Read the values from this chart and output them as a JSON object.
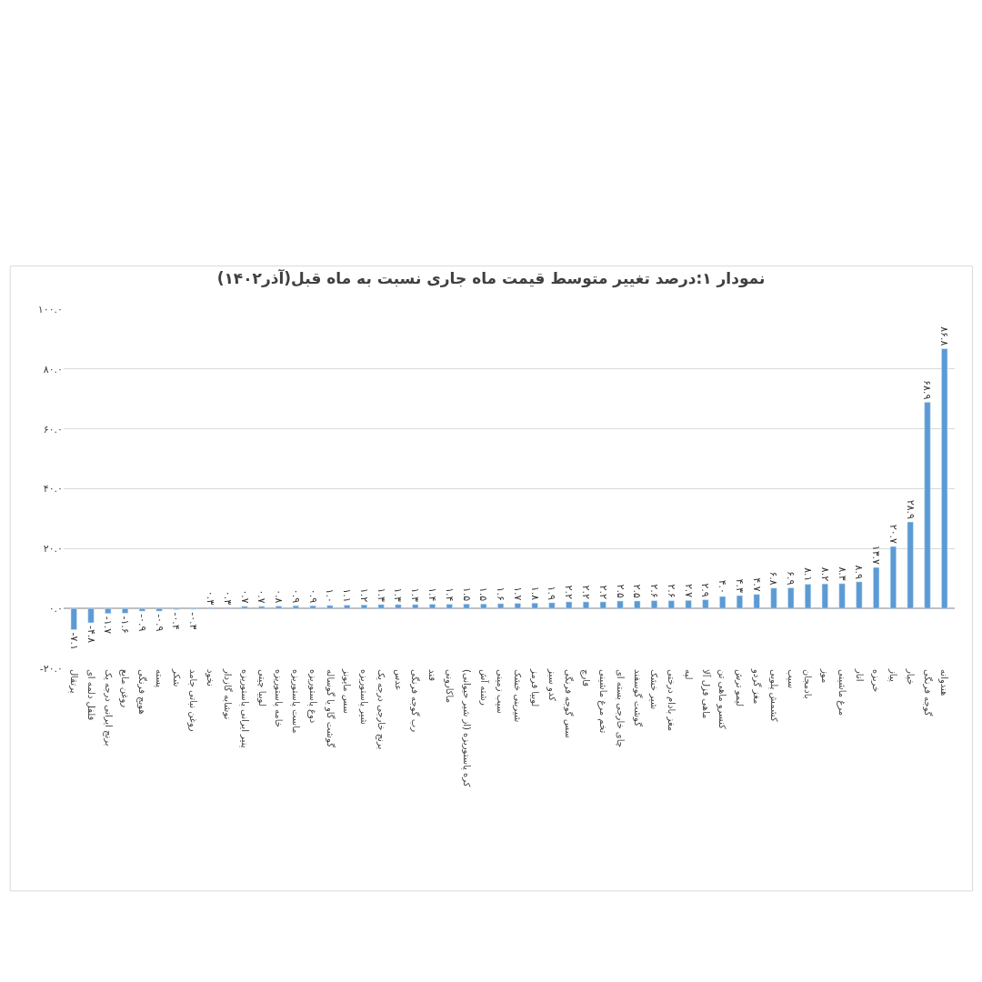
{
  "chart_data": {
    "type": "bar",
    "title": "نمودار ۱:درصد تغییر متوسط قیمت ماه جاری نسبت به ماه قبل(آذر۱۴۰۲)",
    "categories": [
      "پرتقال",
      "فلفل دلمه ای",
      "برنج ایرانی درجه یک",
      "روغن مایع",
      "هویج فرنگی",
      "پسته",
      "شکر",
      "روغن نباتی جامد",
      "نخود",
      "نوشابه گازدار",
      "پنیر ایرانی پاستوریزه",
      "لوبیا چیتی",
      "خامه پاستوریزه",
      "ماست پاستوریزه",
      "دوغ پاستوریزه",
      "گوشت گاو یا گوساله",
      "سس مایونز",
      "شیر پاستوریزه",
      "برنج خارجی درجه یک",
      "عدس",
      "رب گوجه فرنگی",
      "قند",
      "ماکارونی",
      "کره پاستوریزه (از شیر حیوانی)",
      "رشته آش",
      "سیب زمینی",
      "شیرینی خشک",
      "لوبیا قرمز",
      "کدو سبز",
      "سس گوجه فرنگی",
      "قارچ",
      "تخم مرغ ماشینی",
      "چای خارجی بسته ای",
      "گوشت گوسفند",
      "شیر خشک",
      "مغز بادام درختی",
      "لپه",
      "ماهی قزل آلا",
      "کنسرو ماهی تن",
      "لیمو ترش",
      "مغز گردو",
      "کشمش پلویی",
      "سیب",
      "بادمجان",
      "موز",
      "مرغ ماشینی",
      "انار",
      "خربزه",
      "پیاز",
      "خیار",
      "گوجه فرنگی",
      "هندوانه"
    ],
    "values": [
      -7.1,
      -4.8,
      -1.7,
      -1.6,
      -0.9,
      -0.9,
      -0.4,
      -0.3,
      0.3,
      0.3,
      0.7,
      0.7,
      0.8,
      0.9,
      0.9,
      1.0,
      1.1,
      1.2,
      1.3,
      1.3,
      1.3,
      1.4,
      1.4,
      1.5,
      1.5,
      1.6,
      1.7,
      1.8,
      1.9,
      2.2,
      2.2,
      2.2,
      2.5,
      2.5,
      2.6,
      2.6,
      2.7,
      2.9,
      4.0,
      4.3,
      4.7,
      6.8,
      6.9,
      8.1,
      8.2,
      8.3,
      8.9,
      13.7,
      20.7,
      28.9,
      68.9,
      86.8
    ],
    "value_labels": [
      "-۷.۱",
      "-۴.۸",
      "-۱.۷",
      "-۱.۶",
      "-۰.۹",
      "-۰.۹",
      "-۰.۴",
      "-۰.۳",
      "۰.۳",
      "۰.۳",
      "۰.۷",
      "۰.۷",
      "۰.۸",
      "۰.۹",
      "۰.۹",
      "۱.۰",
      "۱.۱",
      "۱.۲",
      "۱.۳",
      "۱.۳",
      "۱.۳",
      "۱.۴",
      "۱.۴",
      "۱.۵",
      "۱.۵",
      "۱.۶",
      "۱.۷",
      "۱.۸",
      "۱.۹",
      "۲.۲",
      "۲.۲",
      "۲.۲",
      "۲.۵",
      "۲.۵",
      "۲.۶",
      "۲.۶",
      "۲.۷",
      "۲.۹",
      "۴.۰",
      "۴.۳",
      "۴.۷",
      "۶.۸",
      "۶.۹",
      "۸.۱",
      "۸.۲",
      "۸.۳",
      "۸.۹",
      "۱۳.۷",
      "۲۰.۷",
      "۲۸.۹",
      "۶۸.۹",
      "۸۶.۸"
    ],
    "color": "#5b9bd5",
    "ylim": [
      -20,
      100
    ],
    "yticks": [
      {
        "value": -20,
        "label": "-۲۰.۰"
      },
      {
        "value": 0,
        "label": "۰.۰"
      },
      {
        "value": 20,
        "label": "۲۰.۰"
      },
      {
        "value": 40,
        "label": "۴۰.۰"
      },
      {
        "value": 60,
        "label": "۶۰.۰"
      },
      {
        "value": 80,
        "label": "۸۰.۰"
      },
      {
        "value": 100,
        "label": "۱۰۰.۰"
      }
    ],
    "grid": "y",
    "legend": false
  }
}
